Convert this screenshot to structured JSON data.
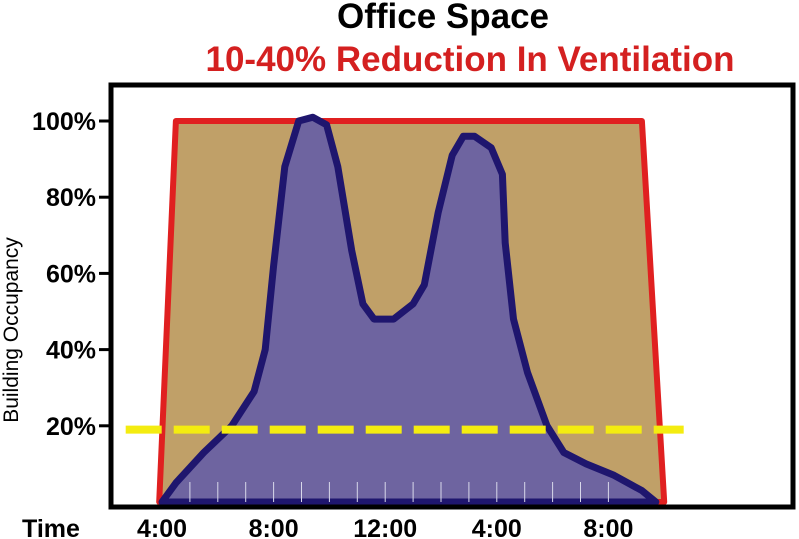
{
  "chart_data": {
    "type": "area",
    "title": "Office Space",
    "subtitle": "10-40% Reduction In Ventilation",
    "xlabel": "Time",
    "ylabel": "Building Occupancy",
    "x_ticks": [
      "4:00",
      "8:00",
      "12:00",
      "4:00",
      "8:00"
    ],
    "y_ticks": [
      "100%",
      "80%",
      "60%",
      "40%",
      "20%"
    ],
    "ylim": [
      0,
      100
    ],
    "grid": false,
    "series": [
      {
        "style": "filled area",
        "fill_color": "#6e64a0",
        "line_color": "#1f166e",
        "points": [
          [
            4.0,
            0
          ],
          [
            4.5,
            5
          ],
          [
            5.5,
            13
          ],
          [
            6.5,
            20
          ],
          [
            7.3,
            29
          ],
          [
            7.7,
            40
          ],
          [
            8.0,
            62
          ],
          [
            8.4,
            88
          ],
          [
            8.9,
            100
          ],
          [
            9.4,
            101
          ],
          [
            9.9,
            99
          ],
          [
            10.3,
            88
          ],
          [
            10.8,
            66
          ],
          [
            11.2,
            52
          ],
          [
            11.6,
            48
          ],
          [
            12.3,
            48
          ],
          [
            13.0,
            52
          ],
          [
            13.4,
            57
          ],
          [
            13.9,
            76
          ],
          [
            14.4,
            91
          ],
          [
            14.8,
            96
          ],
          [
            15.2,
            96
          ],
          [
            15.8,
            93
          ],
          [
            16.2,
            86
          ],
          [
            16.3,
            68
          ],
          [
            16.6,
            48
          ],
          [
            17.1,
            34
          ],
          [
            17.8,
            20
          ],
          [
            18.4,
            13
          ],
          [
            19.2,
            10
          ],
          [
            20.2,
            7
          ],
          [
            21.2,
            3
          ],
          [
            21.7,
            0
          ]
        ]
      },
      {
        "style": "filled area with outline",
        "fill_color": "#c0a068",
        "line_color": "#e02020",
        "points": [
          [
            3.9,
            0
          ],
          [
            4.5,
            100
          ],
          [
            21.2,
            100
          ],
          [
            22.0,
            0
          ]
        ]
      },
      {
        "style": "dashed line",
        "line_color": "#f4ec10",
        "points": [
          [
            2.7,
            19
          ],
          [
            22.7,
            19
          ]
        ]
      }
    ],
    "colors": {
      "title": "#000000",
      "subtitle": "#d42020",
      "frame": "#000000",
      "background": "#ffffff"
    }
  }
}
